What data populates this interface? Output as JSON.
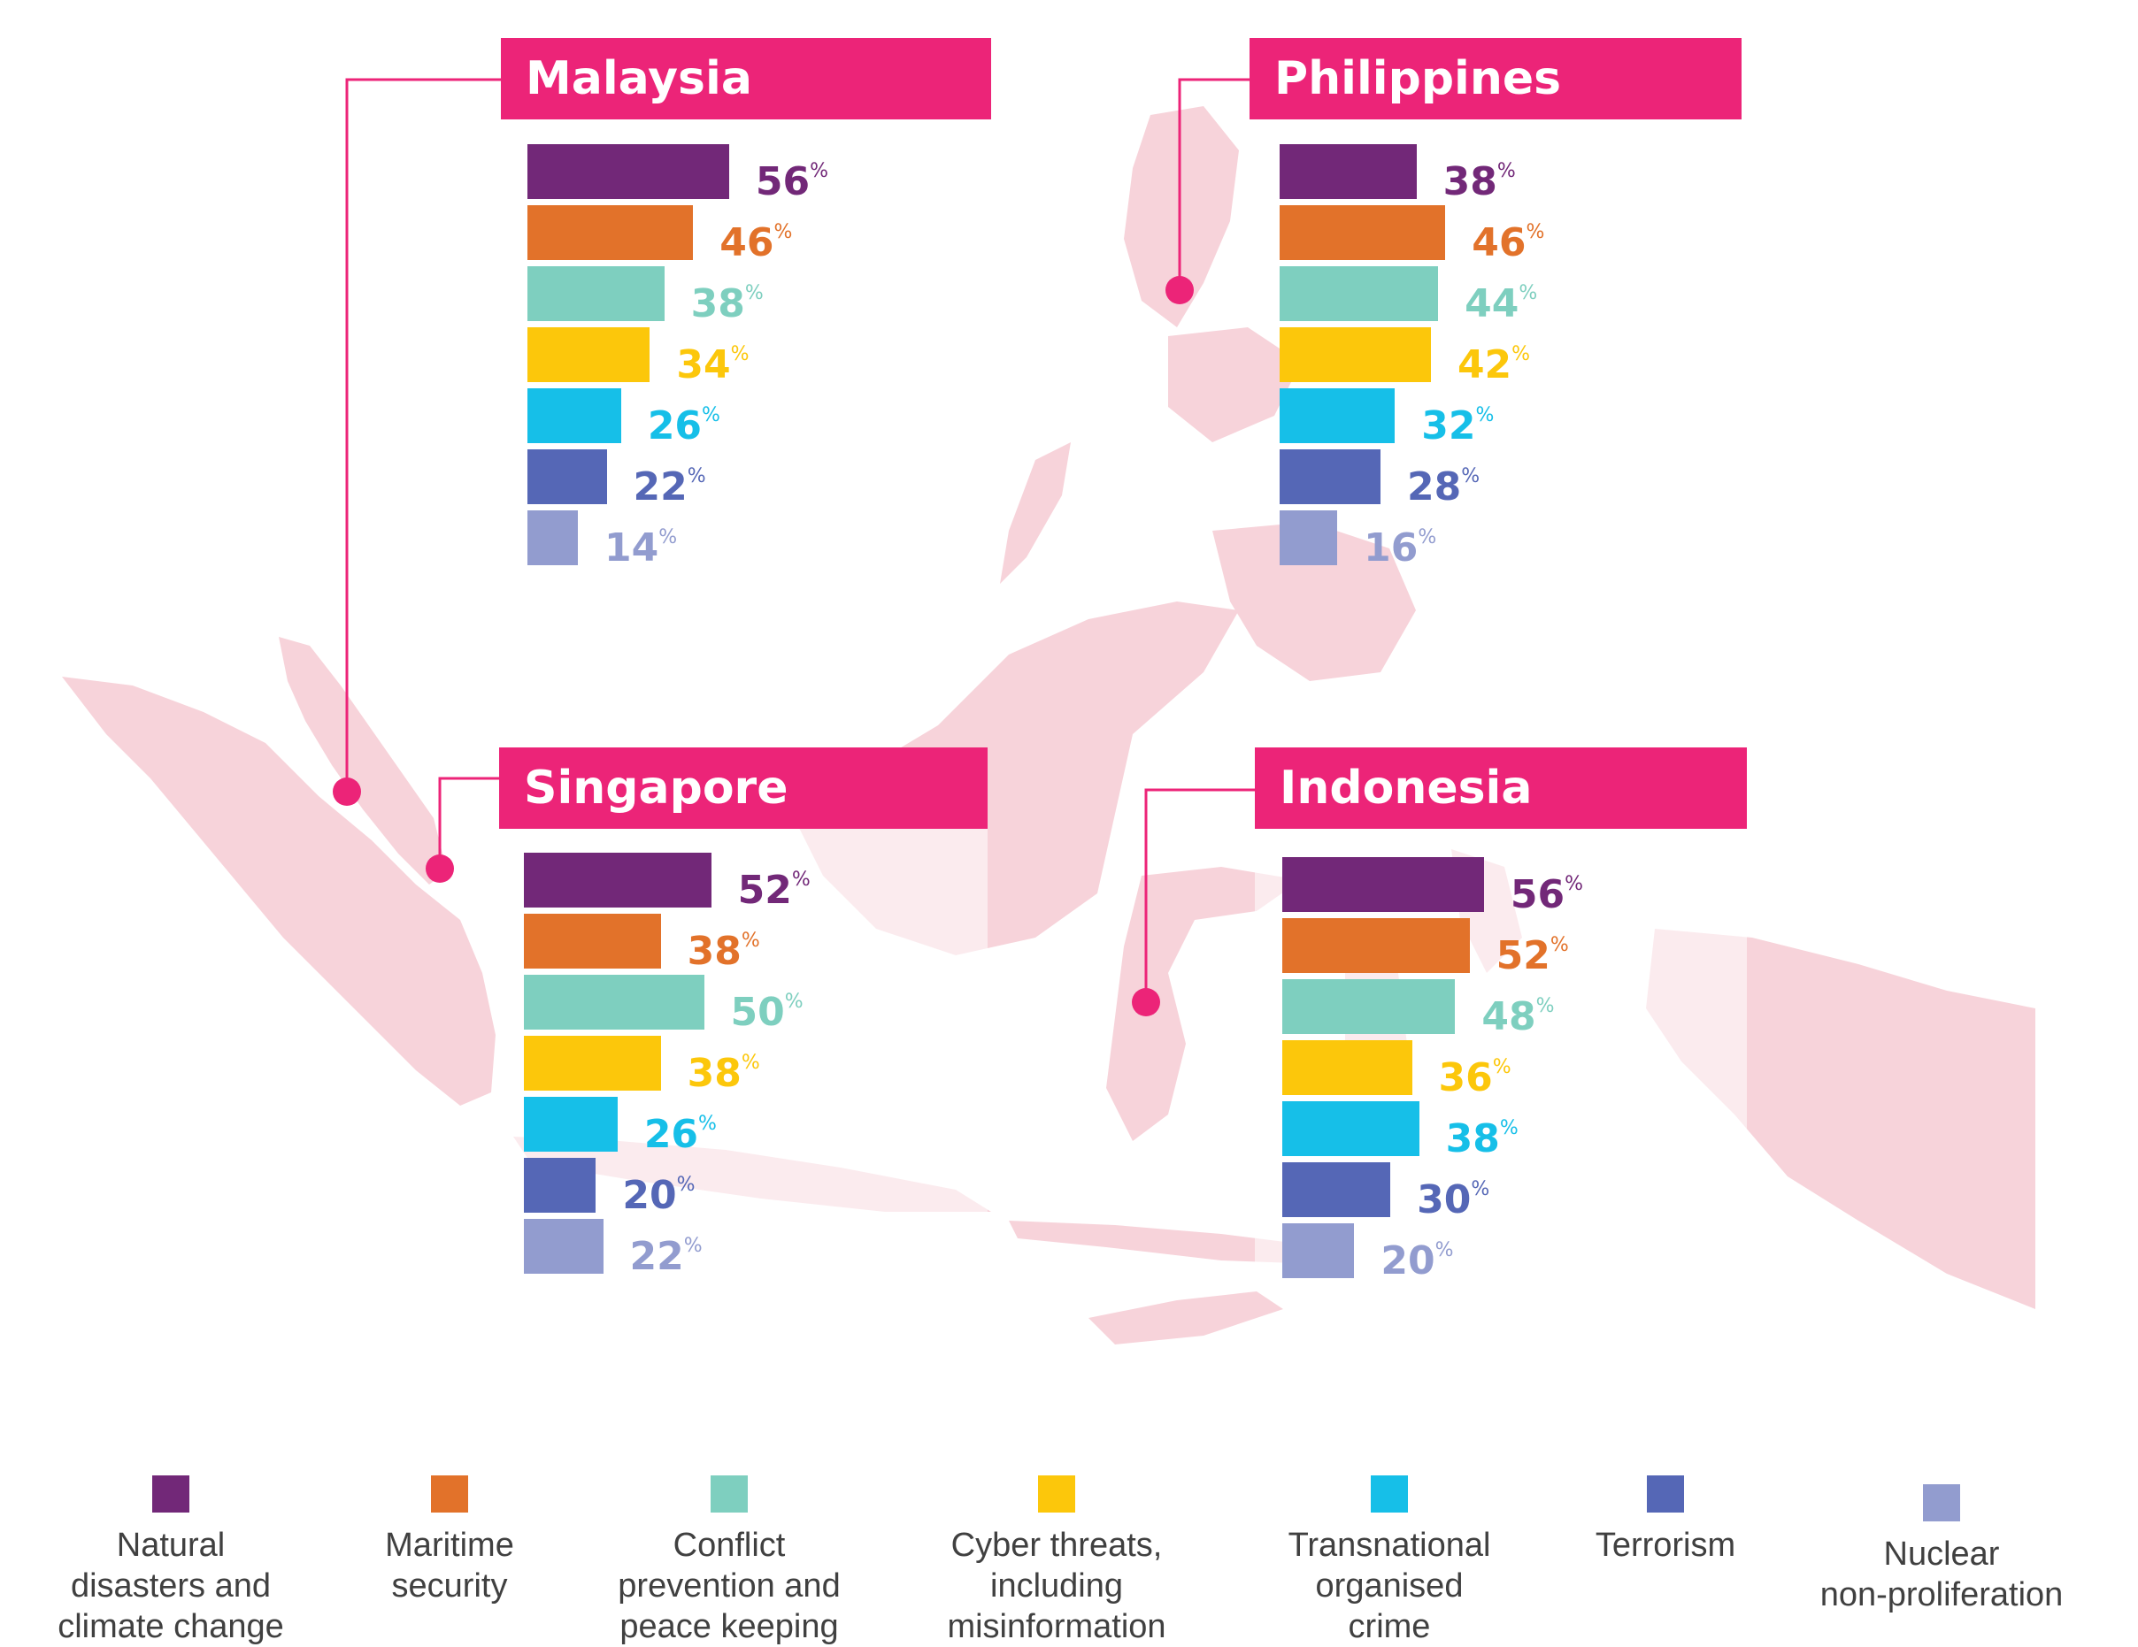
{
  "colors": {
    "accent": "#ec2478",
    "map_fill": "#f7d3da",
    "natural": "#722878",
    "maritime": "#e2722a",
    "conflict": "#7ecfbf",
    "cyber": "#fcc70b",
    "transnational": "#16bfe8",
    "terrorism": "#5567b6",
    "nuclear": "#929ccf"
  },
  "legend": [
    {
      "key": "natural",
      "label": "Natural\ndisasters and\nclimate change"
    },
    {
      "key": "maritime",
      "label": "Maritime\nsecurity"
    },
    {
      "key": "conflict",
      "label": "Conflict\nprevention and\npeace keeping"
    },
    {
      "key": "cyber",
      "label": "Cyber threats,\nincluding\nmisinformation"
    },
    {
      "key": "transnational",
      "label": "Transnational\norganised\ncrime"
    },
    {
      "key": "terrorism",
      "label": "Terrorism"
    },
    {
      "key": "nuclear",
      "label": "Nuclear\nnon-proliferation"
    }
  ],
  "chart_data": [
    {
      "type": "bar",
      "title": "Malaysia",
      "unit": "%",
      "categories": [
        "Natural disasters and climate change",
        "Maritime security",
        "Conflict prevention and peace keeping",
        "Cyber threats, including misinformation",
        "Transnational organised crime",
        "Terrorism",
        "Nuclear non-proliferation"
      ],
      "values": [
        56,
        46,
        38,
        34,
        26,
        22,
        14
      ]
    },
    {
      "type": "bar",
      "title": "Philippines",
      "unit": "%",
      "categories": [
        "Natural disasters and climate change",
        "Maritime security",
        "Conflict prevention and peace keeping",
        "Cyber threats, including misinformation",
        "Transnational organised crime",
        "Terrorism",
        "Nuclear non-proliferation"
      ],
      "values": [
        38,
        46,
        44,
        42,
        32,
        28,
        16
      ]
    },
    {
      "type": "bar",
      "title": "Singapore",
      "unit": "%",
      "categories": [
        "Natural disasters and climate change",
        "Maritime security",
        "Conflict prevention and peace keeping",
        "Cyber threats, including misinformation",
        "Transnational organised crime",
        "Terrorism",
        "Nuclear non-proliferation"
      ],
      "values": [
        52,
        38,
        50,
        38,
        26,
        20,
        22
      ]
    },
    {
      "type": "bar",
      "title": "Indonesia",
      "unit": "%",
      "categories": [
        "Natural disasters and climate change",
        "Maritime security",
        "Conflict prevention and peace keeping",
        "Cyber threats, including misinformation",
        "Transnational organised crime",
        "Terrorism",
        "Nuclear non-proliferation"
      ],
      "values": [
        56,
        52,
        48,
        36,
        38,
        30,
        20
      ]
    }
  ]
}
